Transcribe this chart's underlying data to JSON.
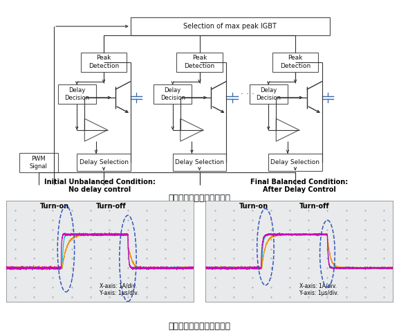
{
  "title_diagram": "ゲート遅延制御システム図",
  "title_results": "ゲート遅延制御実験の結果",
  "plot1_title_line1": "Initial Unbalanced Condition:",
  "plot1_title_line2": "No delay control",
  "plot2_title_line1": "Final Balanced Condition:",
  "plot2_title_line2": "After Delay Control",
  "turn_on_label": "Turn-on",
  "turn_off_label": "Turn-off",
  "xaxis_label": "X-axis: 1A/div.",
  "yaxis_label": "Y-axis: 1μs/div.",
  "bg_color": "#e8eaec",
  "grid_color": "#c8cacf",
  "colors": {
    "orange": "#E8930A",
    "cyan": "#00B8C0",
    "magenta": "#CC00BB",
    "yellow": "#CCCC00"
  },
  "circuit_bg": "#ffffff",
  "line_color": "#333333"
}
